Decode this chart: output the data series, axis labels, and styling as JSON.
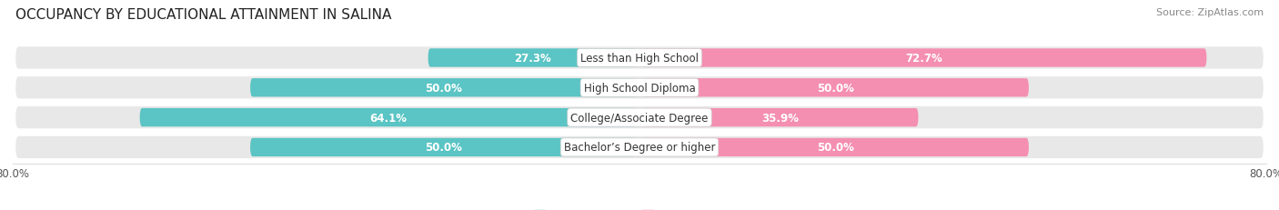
{
  "title": "OCCUPANCY BY EDUCATIONAL ATTAINMENT IN SALINA",
  "source": "Source: ZipAtlas.com",
  "categories": [
    "Less than High School",
    "High School Diploma",
    "College/Associate Degree",
    "Bachelor’s Degree or higher"
  ],
  "owner_pct": [
    27.3,
    50.0,
    64.1,
    50.0
  ],
  "renter_pct": [
    72.7,
    50.0,
    35.9,
    50.0
  ],
  "owner_color": "#5bc4c4",
  "renter_color": "#f48fb1",
  "bg_color": "#ffffff",
  "bar_bg_color": "#e8e8e8",
  "xlim": 80.0,
  "bar_height": 0.62,
  "title_fontsize": 11,
  "source_fontsize": 8,
  "label_fontsize": 8.5,
  "cat_fontsize": 8.5,
  "tick_fontsize": 8.5,
  "legend_fontsize": 8.5
}
